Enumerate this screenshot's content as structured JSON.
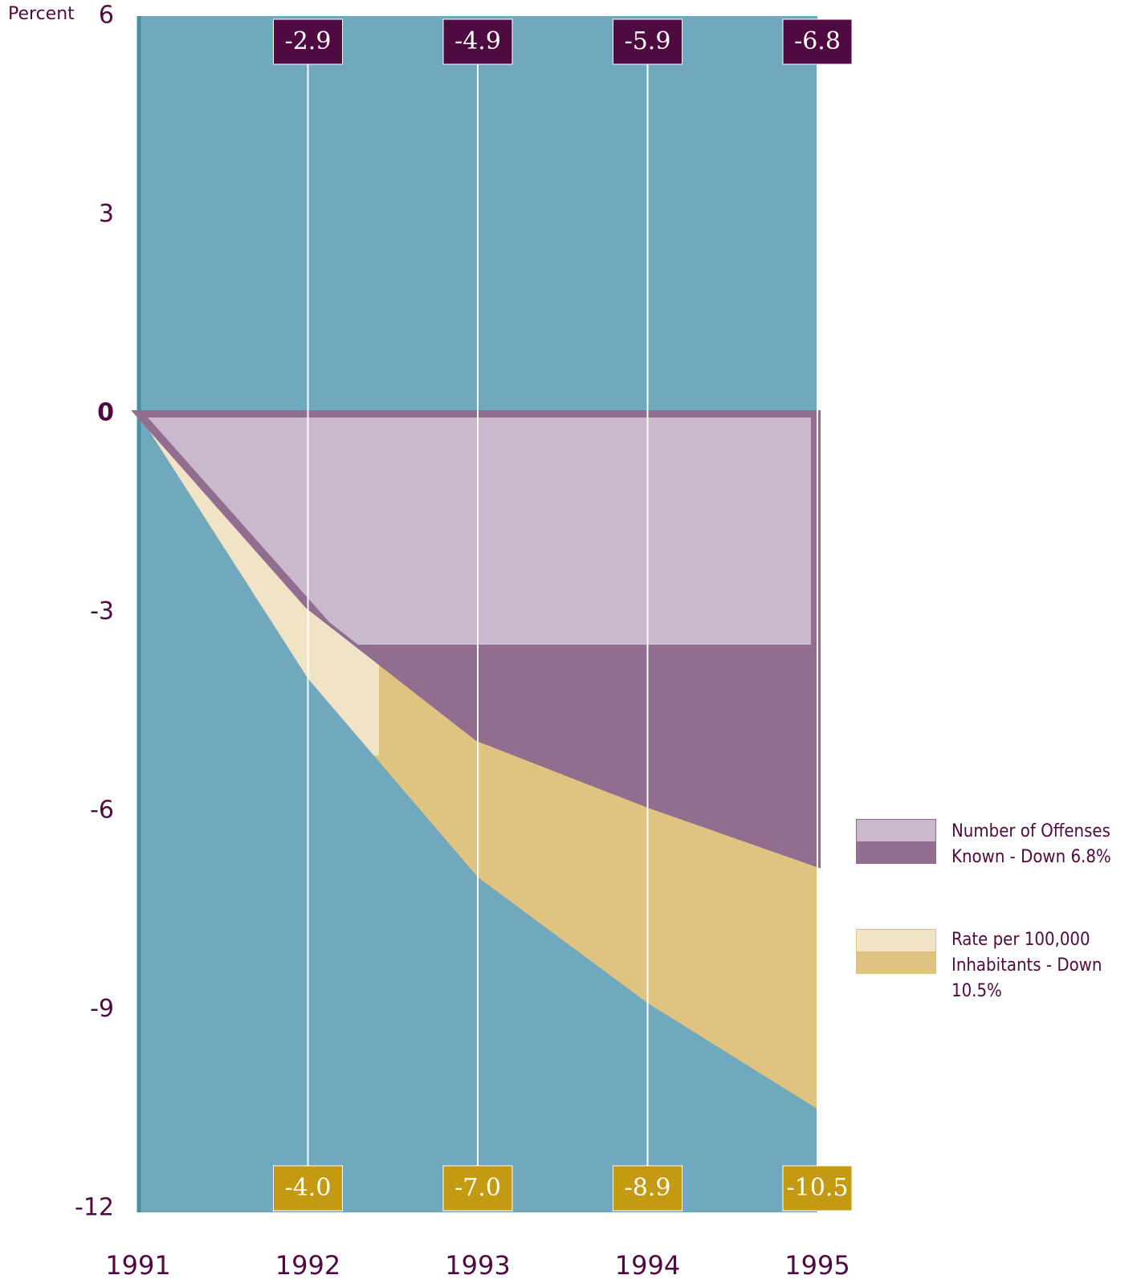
{
  "chart_data": {
    "type": "area",
    "y_label": "Percent",
    "categories": [
      "1991",
      "1992",
      "1993",
      "1994",
      "1995"
    ],
    "series": [
      {
        "name": "Number of Offenses Known - Down 6.8%",
        "color": "#916d8f",
        "values": [
          0,
          -2.9,
          -4.9,
          -5.9,
          -6.8
        ]
      },
      {
        "name": "Rate per 100,000 Inhabitants - Down 10.5%",
        "color": "#dfc381",
        "values": [
          0,
          -4.0,
          -7.0,
          -8.9,
          -10.5
        ],
        "value_labels": [
          null,
          "-4.0",
          "-7.0",
          "-8.9",
          "-10.5"
        ]
      }
    ],
    "ylim": [
      -12,
      6
    ],
    "yticks": [
      -12,
      -9,
      -6,
      -3,
      0,
      3,
      6
    ],
    "grid": true
  }
}
